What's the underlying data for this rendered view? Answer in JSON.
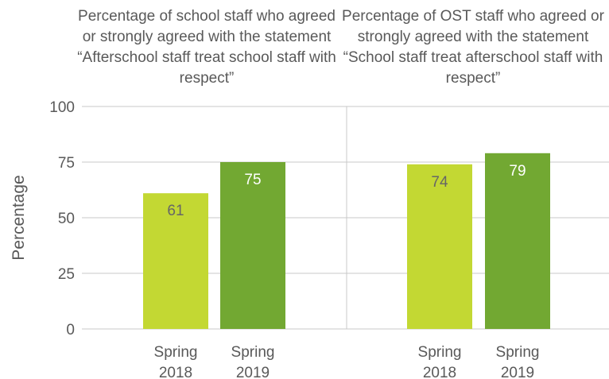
{
  "chart_data": {
    "type": "bar",
    "ylabel": "Percentage",
    "ylim": [
      0,
      100
    ],
    "yticks": [
      0,
      25,
      50,
      75,
      100
    ],
    "grid": true,
    "colors": {
      "spring_2018": "#c3d833",
      "spring_2019": "#72a832",
      "grid": "#c8c8c8",
      "text": "#595959",
      "value_2018": "#666666",
      "value_2019": "#ffffff"
    },
    "panels": [
      {
        "title": "Percentage of school staff who agreed or strongly agreed with the statement “Afterschool staff treat school staff with respect”",
        "categories": [
          "Spring\n2018",
          "Spring\n2019"
        ],
        "values": [
          61,
          75
        ]
      },
      {
        "title": "Percentage of OST staff who agreed or strongly agreed with the statement “School staff treat afterschool staff with respect”",
        "categories": [
          "Spring\n2018",
          "Spring\n2019"
        ],
        "values": [
          74,
          79
        ]
      }
    ]
  }
}
